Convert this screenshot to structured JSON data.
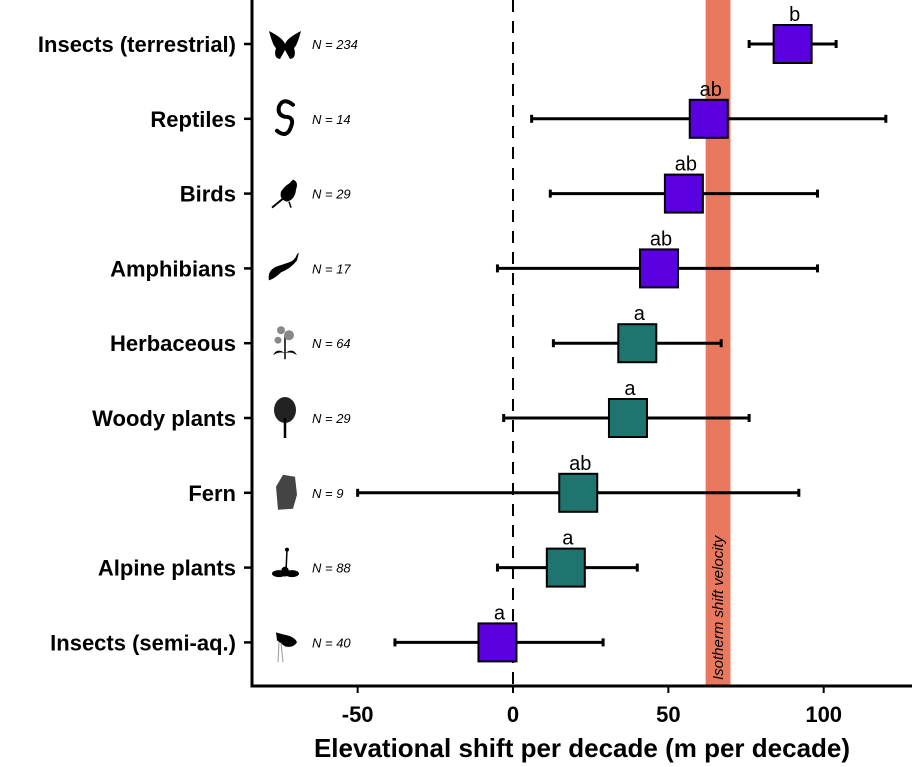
{
  "chart_data": {
    "type": "forest",
    "title": "",
    "xlabel": "Elevational shift per decade (m per decade)",
    "ylabel": "",
    "xlim": [
      -85,
      128
    ],
    "xticks": [
      -50,
      0,
      50,
      100
    ],
    "xtick_labels": [
      "-50",
      "0",
      "50",
      "100"
    ],
    "reference_line": {
      "x": 0,
      "style": "dashed"
    },
    "band": {
      "label": "Isotherm shift velocity",
      "from": 62,
      "to": 70,
      "color": "#E8795F"
    },
    "colors": {
      "animals": "#5B00E0",
      "plants": "#1F7470",
      "line": "#000000"
    },
    "series": [
      {
        "name": "Insects (terrestrial)",
        "n_label": "N = 234",
        "icon": "butterfly-icon",
        "group": "animals",
        "mean": 90,
        "lo": 76,
        "hi": 104,
        "letter": "b"
      },
      {
        "name": "Reptiles",
        "n_label": "N = 14",
        "icon": "snake-icon",
        "group": "animals",
        "mean": 63,
        "lo": 6,
        "hi": 120,
        "letter": "ab"
      },
      {
        "name": "Birds",
        "n_label": "N = 29",
        "icon": "bird-icon",
        "group": "animals",
        "mean": 55,
        "lo": 12,
        "hi": 98,
        "letter": "ab"
      },
      {
        "name": "Amphibians",
        "n_label": "N = 17",
        "icon": "salamander-icon",
        "group": "animals",
        "mean": 47,
        "lo": -5,
        "hi": 98,
        "letter": "ab"
      },
      {
        "name": "Herbaceous",
        "n_label": "N = 64",
        "icon": "flower-icon",
        "group": "plants",
        "mean": 40,
        "lo": 13,
        "hi": 67,
        "letter": "a"
      },
      {
        "name": "Woody plants",
        "n_label": "N = 29",
        "icon": "tree-icon",
        "group": "plants",
        "mean": 37,
        "lo": -3,
        "hi": 76,
        "letter": "a"
      },
      {
        "name": "Fern",
        "n_label": "N = 9",
        "icon": "fern-icon",
        "group": "plants",
        "mean": 21,
        "lo": -50,
        "hi": 92,
        "letter": "ab"
      },
      {
        "name": "Alpine plants",
        "n_label": "N = 88",
        "icon": "alpine-plant-icon",
        "group": "plants",
        "mean": 17,
        "lo": -5,
        "hi": 40,
        "letter": "a"
      },
      {
        "name": "Insects (semi-aq.)",
        "n_label": "N = 40",
        "icon": "aquatic-insect-icon",
        "group": "animals",
        "mean": -5,
        "lo": -38,
        "hi": 29,
        "letter": "a"
      }
    ]
  }
}
